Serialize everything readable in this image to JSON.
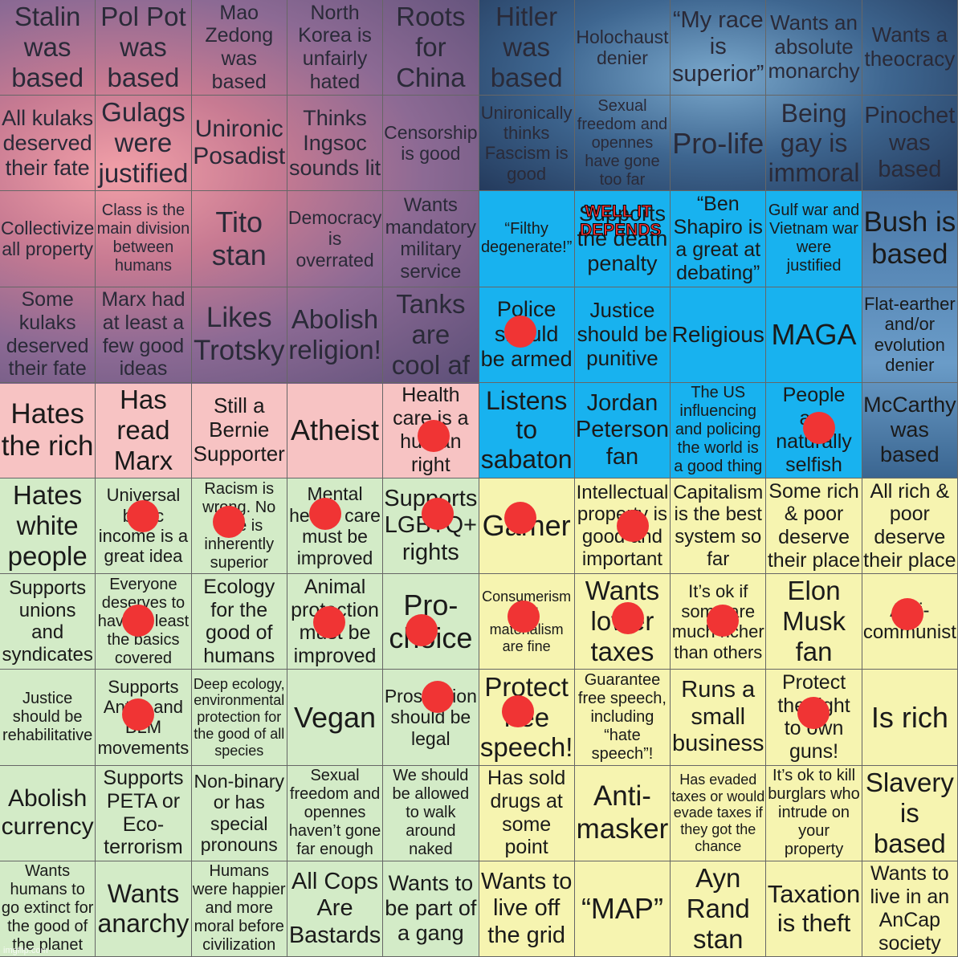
{
  "cells": [
    [
      "Stalin was based",
      "Pol Pot was based",
      "Mao Zedong was based",
      "North Korea is unfairly hated",
      "Roots for China",
      "Hitler was based",
      "Holochaust denier",
      "“My race is superior”",
      "Wants an absolute monarchy",
      "Wants a theocracy"
    ],
    [
      "All kulaks deserved their fate",
      "Gulags were justified",
      "Unironic Posadist",
      "Thinks Ingsoc sounds lit",
      "Censorship is good",
      "Unironically thinks Fascism is good",
      "Sexual freedom and opennes have gone too far",
      "Pro-life",
      "Being gay is immoral",
      "Pinochet was based"
    ],
    [
      "Collectivize all property",
      "Class is the main division between humans",
      "Tito stan",
      "Democracy is overrated",
      "Wants mandatory military service",
      "“Filthy degenerate!”",
      "Supports the death penalty",
      "“Ben Shapiro is a great at debating”",
      "Gulf war and Vietnam war were justified",
      "Bush is based"
    ],
    [
      "Some kulaks deserved their fate",
      "Marx had at least a few good ideas",
      "Likes Trotsky",
      "Abolish religion!",
      "Tanks are cool af",
      "Police should be armed",
      "Justice should be punitive",
      "Religious",
      "MAGA",
      "Flat-earther and/or evolution denier"
    ],
    [
      "Hates the rich",
      "Has read Marx",
      "Still a Bernie Supporter",
      "Atheist",
      "Health care is a human right",
      "Listens to sabaton",
      "Jordan Peterson fan",
      "The US influencing and policing the world is a good thing",
      "People are naturally selfish",
      "McCarthy was based"
    ],
    [
      "Hates white people",
      "Universal basic income is a great idea",
      "Racism is wrong. No race is inherently superior",
      "Mental health care must be improved",
      "Supports LGBTQ+ rights",
      "Gamer",
      "Intellectual property is good and important",
      "Capitalism is the best system so far",
      "Some rich & poor deserve their place",
      "All rich & poor deserve their place"
    ],
    [
      "Supports unions and syndicates",
      "Everyone deserves to have at least the basics covered",
      "Ecology for the good of humans",
      "Animal protection must be improved",
      "Pro-choice",
      "Consumerism and materialism are fine",
      "Wants lower taxes",
      "It’s ok if some are much richer than others",
      "Elon Musk fan",
      "Anti-communist"
    ],
    [
      "Justice should be rehabilitative",
      "Supports Antifa and BLM movements",
      "Deep ecology, environmental protection for the good of all species",
      "Vegan",
      "Prostitution should be legal",
      "Protect free speech!",
      "Guarantee free speech, including “hate speech”!",
      "Runs a small business",
      "Protect the right to own guns!",
      "Is rich"
    ],
    [
      "Abolish currency",
      "Supports PETA or Eco-terrorism",
      "Non-binary or has special pronouns",
      "Sexual freedom and opennes haven’t gone far enough",
      "We should be allowed to walk around naked",
      "Has sold drugs at some point",
      "Anti-masker",
      "Has evaded taxes or would evade taxes if they got the chance",
      "It’s ok to kill burglars who intrude on your property",
      "Slavery is based"
    ],
    [
      "Wants humans to go extinct for the good of the planet",
      "Wants anarchy",
      "Humans were happier and more moral before civilization",
      "All Cops Are Bastards",
      "Wants to be part of a gang",
      "Wants to live off the grid",
      "“MAP”",
      "Ayn Rand stan",
      "Taxation is theft",
      "Wants to live in an AnCap society"
    ]
  ],
  "overlay": "WELL IT DEPENDS",
  "watermark": "imgflip.com"
}
